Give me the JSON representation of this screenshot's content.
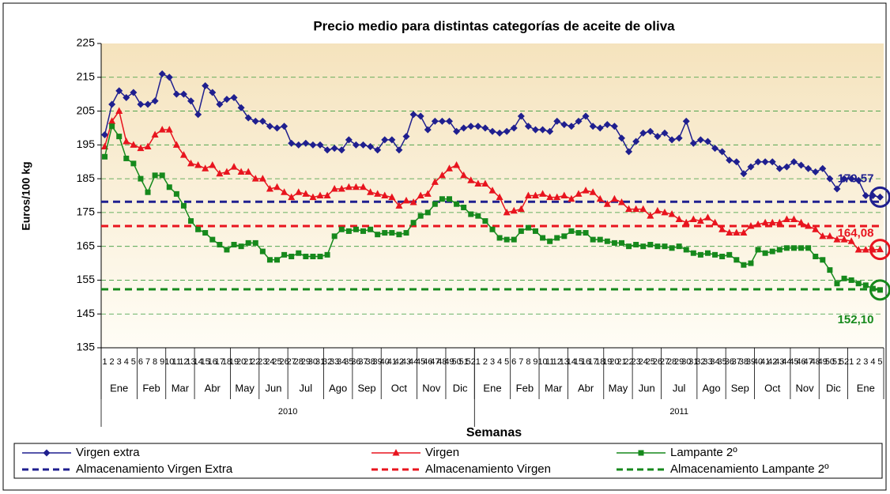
{
  "chart_data": {
    "type": "line",
    "title": "Precio medio para distintas categorías de aceite de oliva",
    "y_label": "Euros/100 kg",
    "x_label": "Semanas",
    "ylim": [
      135,
      225
    ],
    "yticks": [
      135,
      145,
      155,
      165,
      175,
      185,
      195,
      205,
      215,
      225
    ],
    "grid": true,
    "categories": [
      1,
      2,
      3,
      4,
      5,
      6,
      7,
      8,
      9,
      10,
      11,
      12,
      13,
      14,
      15,
      16,
      17,
      18,
      19,
      20,
      21,
      22,
      23,
      24,
      25,
      26,
      27,
      28,
      29,
      30,
      31,
      32,
      33,
      34,
      35,
      36,
      37,
      38,
      39,
      40,
      41,
      42,
      43,
      44,
      45,
      46,
      47,
      48,
      49,
      50,
      51,
      52,
      1,
      2,
      3,
      4,
      5,
      6,
      7,
      8,
      9,
      10,
      11,
      12,
      13,
      14,
      15,
      16,
      17,
      18,
      19,
      20,
      21,
      22,
      23,
      24,
      25,
      26,
      27,
      28,
      29,
      30,
      31,
      32,
      33,
      34,
      35,
      36,
      37,
      38,
      39,
      40,
      41,
      42,
      43,
      44,
      45,
      46,
      47,
      48,
      49,
      50,
      51,
      52,
      1,
      2,
      3,
      4,
      5
    ],
    "months": [
      {
        "label": "Ene",
        "weeks": 5
      },
      {
        "label": "Feb",
        "weeks": 4
      },
      {
        "label": "Mar",
        "weeks": 4
      },
      {
        "label": "Abr",
        "weeks": 5
      },
      {
        "label": "May",
        "weeks": 4
      },
      {
        "label": "Jun",
        "weeks": 4
      },
      {
        "label": "Jul",
        "weeks": 5
      },
      {
        "label": "Ago",
        "weeks": 4
      },
      {
        "label": "Sep",
        "weeks": 4
      },
      {
        "label": "Oct",
        "weeks": 5
      },
      {
        "label": "Nov",
        "weeks": 4
      },
      {
        "label": "Dic",
        "weeks": 4
      },
      {
        "label": "Ene",
        "weeks": 5
      },
      {
        "label": "Feb",
        "weeks": 4
      },
      {
        "label": "Mar",
        "weeks": 4
      },
      {
        "label": "Abr",
        "weeks": 5
      },
      {
        "label": "May",
        "weeks": 4
      },
      {
        "label": "Jun",
        "weeks": 4
      },
      {
        "label": "Jul",
        "weeks": 5
      },
      {
        "label": "Ago",
        "weeks": 4
      },
      {
        "label": "Sep",
        "weeks": 4
      },
      {
        "label": "Oct",
        "weeks": 5
      },
      {
        "label": "Nov",
        "weeks": 4
      },
      {
        "label": "Dic",
        "weeks": 4
      },
      {
        "label": "Ene",
        "weeks": 5
      }
    ],
    "years": [
      {
        "label": "2010",
        "weeks": 52
      },
      {
        "label": "2011",
        "weeks": 57
      }
    ],
    "series": [
      {
        "name": "Virgen extra",
        "color": "#1f1f8f",
        "marker": "diamond",
        "end_label": "179,57",
        "values": [
          198,
          207,
          211,
          209,
          210.5,
          207,
          207,
          208,
          216,
          215,
          210,
          210,
          208,
          204,
          212.5,
          210.5,
          207,
          208.5,
          209,
          206,
          203,
          202,
          202,
          200.5,
          200,
          200.5,
          195.5,
          195,
          195.5,
          195,
          195,
          193.5,
          194,
          193.5,
          196.5,
          195,
          195,
          194.5,
          193.5,
          196.5,
          196.5,
          193.5,
          197.5,
          204,
          203.5,
          199.5,
          202,
          202,
          202,
          199,
          200,
          200.5,
          200.5,
          200,
          199,
          198.5,
          199,
          200,
          203.5,
          200.5,
          199.5,
          199.5,
          199,
          202,
          201,
          200.5,
          202,
          203.5,
          200.5,
          200,
          201,
          200.5,
          197,
          193,
          196,
          198.5,
          199,
          197.5,
          198.5,
          196.5,
          197,
          202,
          195.5,
          196.5,
          196,
          194,
          193,
          190.5,
          190,
          186.5,
          188.5,
          190,
          190,
          190,
          188,
          188.5,
          190,
          189,
          188,
          187,
          188,
          185,
          182,
          185,
          185,
          184.5,
          180,
          180,
          179.57
        ]
      },
      {
        "name": "Virgen",
        "color": "#e8141e",
        "marker": "triangle",
        "end_label": "164,08",
        "values": [
          194.5,
          202,
          205,
          196,
          195,
          194,
          194.5,
          198,
          199.5,
          199.5,
          195,
          192,
          189.5,
          189,
          188,
          189,
          186.5,
          187,
          188.5,
          187,
          187,
          185,
          185,
          182,
          182.5,
          181,
          179.5,
          181,
          180.5,
          179.5,
          180,
          180,
          182,
          182,
          182.5,
          182.5,
          182.5,
          181,
          180.5,
          180,
          179.5,
          177,
          178.5,
          178,
          180,
          180.5,
          184,
          186,
          188,
          189,
          186,
          184.5,
          183.5,
          183.5,
          181.5,
          179.5,
          175,
          175.5,
          176,
          180,
          180,
          180.5,
          179.5,
          179.5,
          180,
          179,
          180.5,
          181.5,
          181,
          179,
          177.5,
          179,
          178,
          176,
          176,
          176,
          174,
          175.5,
          175,
          174.5,
          173,
          172,
          173,
          172.5,
          173.5,
          172,
          170,
          169,
          169,
          169,
          171,
          171.5,
          172,
          172,
          172,
          173,
          173,
          172,
          171,
          170,
          168,
          168,
          167,
          167,
          166.5,
          164,
          164,
          164,
          164.08
        ]
      },
      {
        "name": "Lampante 2º",
        "color": "#16891c",
        "marker": "square",
        "end_label": "152,10",
        "values": [
          191.5,
          200.5,
          197.5,
          191,
          189.5,
          185,
          181,
          186,
          186,
          182.5,
          180.5,
          177,
          172.5,
          170,
          169,
          167,
          165.5,
          164,
          165.5,
          165,
          166,
          166,
          163.5,
          161,
          161,
          162.5,
          162,
          163,
          162,
          162,
          162,
          162.5,
          168,
          170,
          169.5,
          170,
          169.5,
          170,
          168.5,
          169,
          169,
          168.5,
          169,
          172,
          174,
          175,
          177.5,
          179,
          179,
          177.5,
          176.5,
          174.5,
          174,
          172.5,
          170,
          167.5,
          167,
          167,
          169.5,
          170.5,
          169.5,
          167.5,
          166.5,
          167.5,
          168,
          169.5,
          169,
          169,
          167,
          167,
          166.5,
          166,
          166,
          165,
          165.5,
          165,
          165.5,
          165,
          165,
          164.5,
          165,
          164,
          163,
          162.5,
          163,
          162.5,
          162,
          162.5,
          161,
          159.5,
          160,
          164,
          163,
          163.5,
          164,
          164.5,
          164.5,
          164.5,
          164.5,
          162,
          161,
          158,
          154,
          155.5,
          155,
          154,
          153.5,
          152.5,
          152.1
        ]
      }
    ],
    "reference_lines": [
      {
        "name": "Almacenamiento Virgen Extra",
        "color": "#1f1f8f",
        "value": 178.2
      },
      {
        "name": "Almacenamiento Virgen",
        "color": "#e8141e",
        "value": 171
      },
      {
        "name": "Almacenamiento Lampante 2º",
        "color": "#16891c",
        "value": 152.3
      }
    ]
  }
}
